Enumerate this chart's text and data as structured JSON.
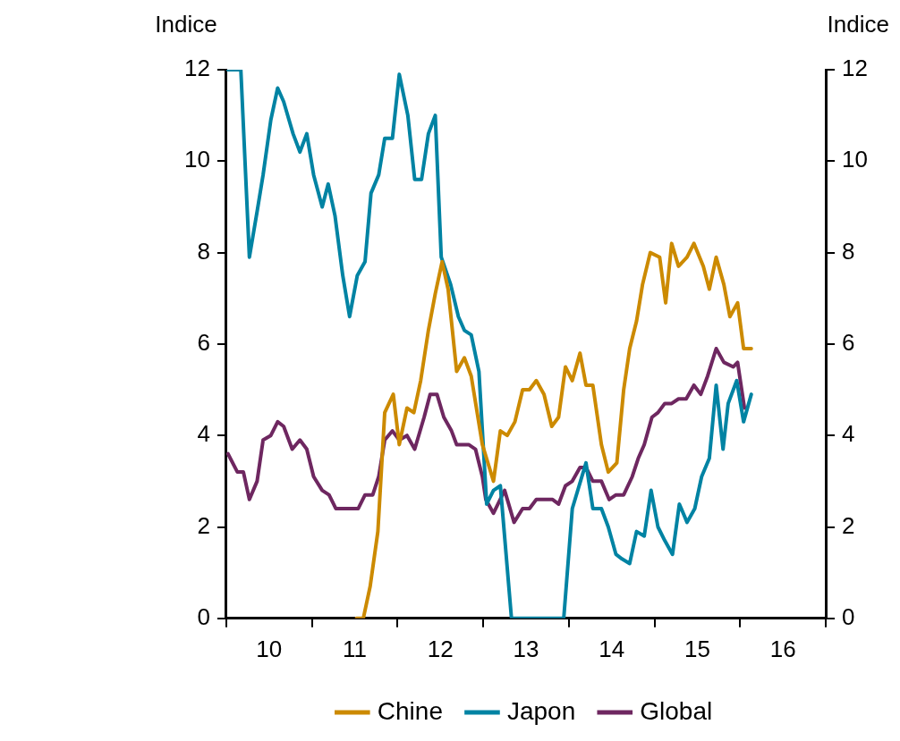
{
  "chart_data": {
    "type": "line",
    "ylabel": "Indice",
    "y2label": "Indice",
    "xlim": [
      9.5,
      16.5
    ],
    "xticks": [
      {
        "value": 9.5,
        "label": null
      },
      10,
      {
        "value": 10.5,
        "label": null
      },
      11,
      {
        "value": 11.5,
        "label": null
      },
      12,
      {
        "value": 12.5,
        "label": null
      },
      13,
      {
        "value": 13.5,
        "label": null
      },
      14,
      {
        "value": 14.5,
        "label": null
      },
      15,
      {
        "value": 15.5,
        "label": null
      },
      16,
      {
        "value": 16.5,
        "label": null
      }
    ],
    "ylim": [
      0,
      12
    ],
    "yticks": [
      0,
      2,
      4,
      6,
      8,
      10,
      12
    ],
    "y2lim": [
      0,
      12
    ],
    "y2ticks": [
      0,
      2,
      4,
      6,
      8,
      10,
      12
    ],
    "legend": "bottom",
    "marker": "none",
    "line_style": "solid",
    "series": [
      {
        "name": "Chine",
        "color": "#cc8a00",
        "x": [
          11.02,
          11.1,
          11.18,
          11.27,
          11.35,
          11.45,
          11.52,
          11.61,
          11.69,
          11.77,
          11.86,
          11.94,
          12.02,
          12.09,
          12.19,
          12.28,
          12.36,
          12.49,
          12.62,
          12.7,
          12.78,
          12.87,
          12.96,
          13.04,
          13.12,
          13.21,
          13.3,
          13.38,
          13.46,
          13.54,
          13.63,
          13.7,
          13.78,
          13.88,
          13.96,
          14.06,
          14.14,
          14.21,
          14.29,
          14.36,
          14.45,
          14.56,
          14.63,
          14.7,
          14.78,
          14.88,
          14.96,
          15.07,
          15.14,
          15.22,
          15.31,
          15.38,
          15.47,
          15.54,
          15.63
        ],
        "values": [
          0,
          0,
          0.7,
          1.9,
          4.5,
          4.9,
          3.8,
          4.6,
          4.5,
          5.2,
          6.3,
          7.1,
          7.8,
          7.2,
          5.4,
          5.7,
          5.3,
          3.8,
          3.0,
          4.1,
          4.0,
          4.3,
          5.0,
          5.0,
          5.2,
          4.9,
          4.2,
          4.4,
          5.5,
          5.2,
          5.8,
          5.1,
          5.1,
          3.8,
          3.2,
          3.4,
          5.0,
          5.9,
          6.5,
          7.3,
          8.0,
          7.9,
          6.9,
          8.2,
          7.7,
          7.9,
          8.2,
          7.7,
          7.2,
          7.9,
          7.3,
          6.6,
          6.9,
          5.9,
          5.9
        ]
      },
      {
        "name": "Japon",
        "color": "#0083a3",
        "x": [
          9.52,
          9.67,
          9.77,
          9.86,
          9.93,
          10.02,
          10.1,
          10.17,
          10.28,
          10.36,
          10.44,
          10.52,
          10.62,
          10.69,
          10.77,
          10.86,
          10.94,
          11.03,
          11.12,
          11.19,
          11.28,
          11.35,
          11.44,
          11.52,
          11.62,
          11.7,
          11.78,
          11.86,
          11.94,
          12.01,
          12.12,
          12.21,
          12.28,
          12.36,
          12.45,
          12.54,
          12.62,
          12.7,
          12.83,
          13.44,
          13.54,
          13.7,
          13.78,
          13.88,
          13.96,
          14.05,
          14.12,
          14.21,
          14.29,
          14.38,
          14.46,
          14.54,
          14.62,
          14.71,
          14.79,
          14.88,
          14.97,
          15.05,
          15.14,
          15.22,
          15.3,
          15.36,
          15.46,
          15.54,
          15.63
        ],
        "values": [
          12,
          12,
          7.9,
          8.9,
          9.7,
          10.9,
          11.6,
          11.3,
          10.6,
          10.2,
          10.6,
          9.7,
          9.0,
          9.5,
          8.8,
          7.5,
          6.6,
          7.5,
          7.8,
          9.3,
          9.7,
          10.5,
          10.5,
          11.9,
          11.0,
          9.6,
          9.6,
          10.6,
          11.0,
          7.9,
          7.3,
          6.6,
          6.3,
          6.2,
          5.4,
          2.5,
          2.8,
          2.9,
          0,
          0,
          2.4,
          3.4,
          2.4,
          2.4,
          2.0,
          1.4,
          1.3,
          1.2,
          1.9,
          1.8,
          2.8,
          2.0,
          1.7,
          1.4,
          2.5,
          2.1,
          2.4,
          3.1,
          3.5,
          5.1,
          3.7,
          4.7,
          5.2,
          4.3,
          4.9
        ]
      },
      {
        "name": "Global",
        "color": "#6e2760",
        "x": [
          9.52,
          9.63,
          9.7,
          9.77,
          9.86,
          9.93,
          10.02,
          10.1,
          10.17,
          10.27,
          10.36,
          10.44,
          10.52,
          10.62,
          10.7,
          10.78,
          10.88,
          10.96,
          11.04,
          11.12,
          11.21,
          11.28,
          11.35,
          11.44,
          11.52,
          11.61,
          11.7,
          11.81,
          11.88,
          11.96,
          12.04,
          12.13,
          12.19,
          12.33,
          12.41,
          12.49,
          12.53,
          12.62,
          12.75,
          12.86,
          12.96,
          13.04,
          13.12,
          13.23,
          13.31,
          13.38,
          13.46,
          13.54,
          13.63,
          13.7,
          13.78,
          13.88,
          13.97,
          14.05,
          14.14,
          14.24,
          14.31,
          14.38,
          14.47,
          14.54,
          14.62,
          14.7,
          14.78,
          14.87,
          14.96,
          15.04,
          15.12,
          15.22,
          15.31,
          15.42,
          15.47,
          15.55
        ],
        "values": [
          3.6,
          3.2,
          3.2,
          2.6,
          3.0,
          3.9,
          4.0,
          4.3,
          4.2,
          3.7,
          3.9,
          3.7,
          3.1,
          2.8,
          2.7,
          2.4,
          2.4,
          2.4,
          2.4,
          2.7,
          2.7,
          3.1,
          3.9,
          4.1,
          3.9,
          4.0,
          3.7,
          4.4,
          4.9,
          4.9,
          4.4,
          4.1,
          3.8,
          3.8,
          3.7,
          3.1,
          2.6,
          2.3,
          2.8,
          2.1,
          2.4,
          2.4,
          2.6,
          2.6,
          2.6,
          2.5,
          2.9,
          3.0,
          3.3,
          3.3,
          3.0,
          3.0,
          2.6,
          2.7,
          2.7,
          3.1,
          3.5,
          3.8,
          4.4,
          4.5,
          4.7,
          4.7,
          4.8,
          4.8,
          5.1,
          4.9,
          5.3,
          5.9,
          5.6,
          5.5,
          5.6,
          4.6
        ]
      }
    ]
  }
}
